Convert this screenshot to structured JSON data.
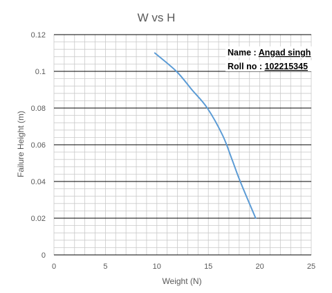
{
  "chart_data": {
    "type": "line",
    "title": "W  vs H",
    "xlabel": "Weight (N)",
    "ylabel": "Failure Height (m)",
    "xlim": [
      0,
      25
    ],
    "ylim": [
      0,
      0.12
    ],
    "x_ticks": [
      "0",
      "5",
      "10",
      "15",
      "20",
      "25"
    ],
    "y_ticks": [
      "0",
      "0.02",
      "0.04",
      "0.06",
      "0.08",
      "0.1",
      "0.12"
    ],
    "grid": true,
    "line_color": "#5b9bd5",
    "series": [
      {
        "x": [
          9.8,
          11.9,
          13.4,
          14.9,
          16.4,
          17.3,
          18.1,
          19.6
        ],
        "y": [
          0.11,
          0.1,
          0.09,
          0.08,
          0.065,
          0.052,
          0.04,
          0.02
        ]
      }
    ],
    "annotations": {
      "name_label": "Name : ",
      "name_value": "Angad singh",
      "roll_label": "Roll no : ",
      "roll_value": "102215345"
    }
  }
}
